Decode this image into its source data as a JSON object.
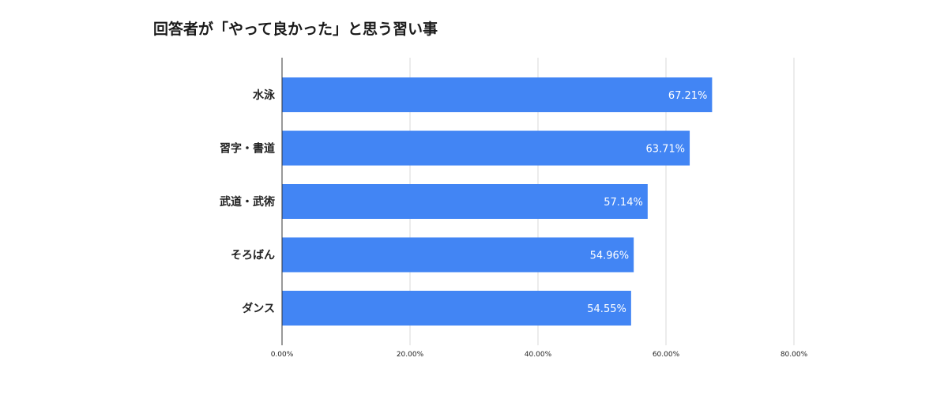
{
  "chart_data": {
    "type": "bar",
    "orientation": "horizontal",
    "title": "回答者が「やって良かった」と思う習い事",
    "categories": [
      "水泳",
      "習字・書道",
      "武道・武術",
      "そろばん",
      "ダンス"
    ],
    "values": [
      67.21,
      63.71,
      57.14,
      54.96,
      54.55
    ],
    "data_labels": [
      "67.21%",
      "63.71%",
      "57.14%",
      "54.96%",
      "54.55%"
    ],
    "x_ticks": [
      0,
      20,
      40,
      60,
      80
    ],
    "x_tick_labels": [
      "0.00%",
      "20.00%",
      "40.00%",
      "60.00%",
      "80.00%"
    ],
    "xlim": [
      0,
      80
    ],
    "grid": true,
    "legend": "none",
    "bar_color": "#4285f4",
    "grid_color": "#d9d9d9",
    "axis_color": "#333333"
  }
}
